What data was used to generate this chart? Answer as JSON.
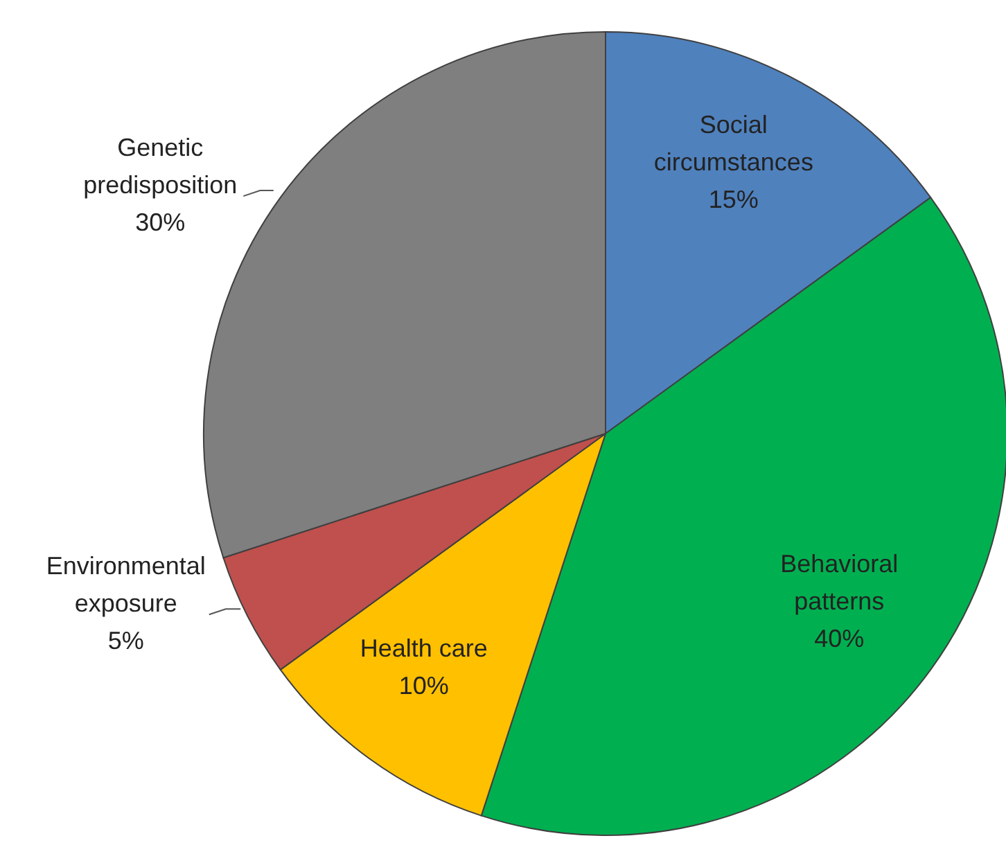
{
  "chart_data": {
    "type": "pie",
    "categories": [
      "Social circumstances",
      "Behavioral patterns",
      "Health care",
      "Environmental exposure",
      "Genetic predisposition"
    ],
    "values": [
      15,
      40,
      10,
      5,
      30
    ],
    "colors": [
      "#4f81bd",
      "#00b050",
      "#ffc000",
      "#c0504d",
      "#7f7f7f"
    ],
    "value_labels": [
      "15%",
      "40%",
      "10%",
      "5%",
      "30%"
    ],
    "legend": false
  }
}
